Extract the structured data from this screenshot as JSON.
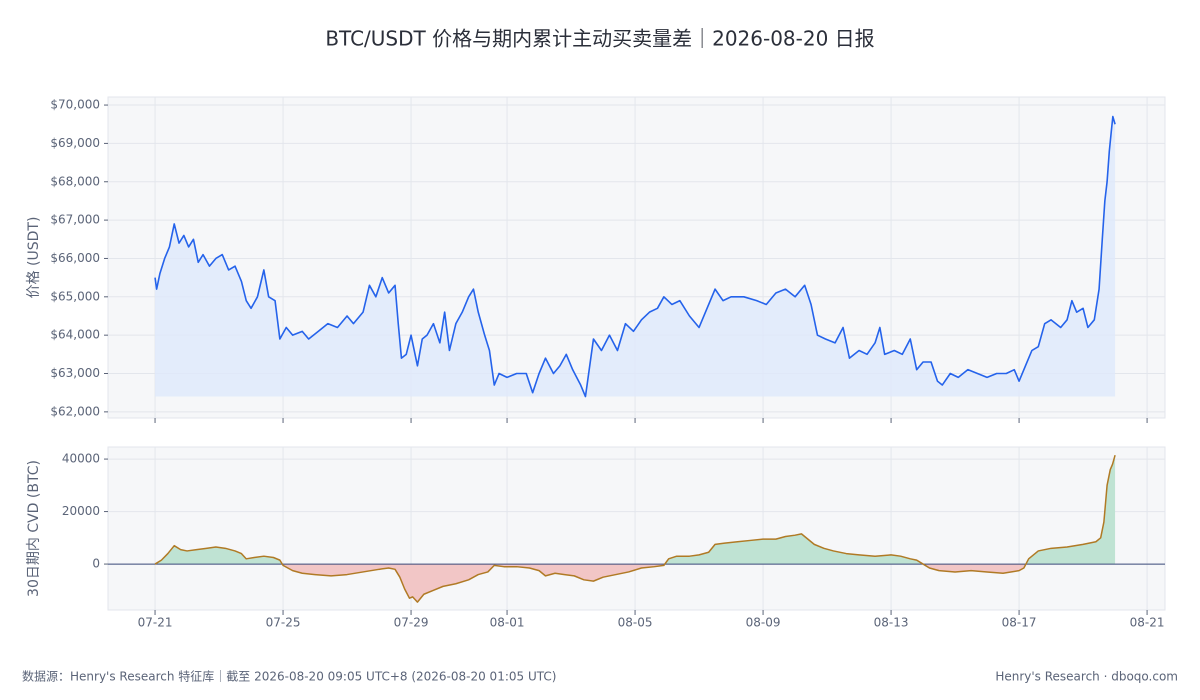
{
  "title": "BTC/USDT 价格与期内累计主动买卖量差｜2026-08-20 日报",
  "footer": {
    "left": "数据源：Henry's Research 特征库｜截至 2026-08-20 09:05 UTC+8 (2026-08-20 01:05 UTC)",
    "right": "Henry's Research · dboqo.com"
  },
  "chart_data": [
    {
      "type": "line",
      "y_label": "价格 (USDT)",
      "color": "#2563eb",
      "fill_color": "#dfe8fb",
      "grid": true,
      "xlim": [
        -1.47,
        31.56
      ],
      "xticks": [
        0,
        4,
        8,
        11,
        15,
        19,
        23,
        27,
        31
      ],
      "ylim": [
        61840,
        70210
      ],
      "yticks": [
        {
          "value": 62000,
          "label": "$62,000"
        },
        {
          "value": 63000,
          "label": "$63,000"
        },
        {
          "value": 64000,
          "label": "$64,000"
        },
        {
          "value": 65000,
          "label": "$65,000"
        },
        {
          "value": 66000,
          "label": "$66,000"
        },
        {
          "value": 67000,
          "label": "$67,000"
        },
        {
          "value": 68000,
          "label": "$68,000"
        },
        {
          "value": 69000,
          "label": "$69,000"
        },
        {
          "value": 70000,
          "label": "$70,000"
        }
      ],
      "x": [
        0,
        0.05,
        0.15,
        0.3,
        0.45,
        0.6,
        0.75,
        0.9,
        1.05,
        1.2,
        1.35,
        1.5,
        1.7,
        1.9,
        2.1,
        2.3,
        2.5,
        2.7,
        2.85,
        3.0,
        3.2,
        3.4,
        3.55,
        3.75,
        3.9,
        4.1,
        4.3,
        4.6,
        4.8,
        5.1,
        5.4,
        5.7,
        6.0,
        6.2,
        6.5,
        6.7,
        6.9,
        7.1,
        7.3,
        7.5,
        7.6,
        7.7,
        7.85,
        8.0,
        8.2,
        8.35,
        8.5,
        8.7,
        8.9,
        9.05,
        9.2,
        9.4,
        9.6,
        9.8,
        9.95,
        10.1,
        10.3,
        10.45,
        10.6,
        10.75,
        11.0,
        11.3,
        11.6,
        11.8,
        12.0,
        12.2,
        12.45,
        12.65,
        12.85,
        13.05,
        13.3,
        13.45,
        13.7,
        13.95,
        14.2,
        14.45,
        14.7,
        14.95,
        15.2,
        15.45,
        15.7,
        15.9,
        16.15,
        16.4,
        16.7,
        17.0,
        17.25,
        17.5,
        17.75,
        18.0,
        18.4,
        18.8,
        19.1,
        19.4,
        19.7,
        20.0,
        20.3,
        20.5,
        20.7,
        20.95,
        21.25,
        21.5,
        21.7,
        22.0,
        22.25,
        22.5,
        22.65,
        22.8,
        23.1,
        23.35,
        23.6,
        23.8,
        24.0,
        24.25,
        24.45,
        24.6,
        24.85,
        25.1,
        25.4,
        25.7,
        26.0,
        26.3,
        26.6,
        26.85,
        27.0,
        27.2,
        27.4,
        27.6,
        27.8,
        28.0,
        28.3,
        28.5,
        28.65,
        28.8,
        29.0,
        29.15,
        29.35,
        29.5,
        29.6,
        29.68,
        29.75,
        29.82,
        29.88,
        29.93,
        30.0
      ],
      "values": [
        65500,
        65200,
        65600,
        66000,
        66300,
        66900,
        66400,
        66600,
        66300,
        66500,
        65900,
        66100,
        65800,
        66000,
        66100,
        65700,
        65800,
        65400,
        64900,
        64700,
        65000,
        65700,
        65000,
        64900,
        63900,
        64200,
        64000,
        64100,
        63900,
        64100,
        64300,
        64200,
        64500,
        64300,
        64600,
        65300,
        65000,
        65500,
        65100,
        65300,
        64300,
        63400,
        63500,
        64000,
        63200,
        63900,
        64000,
        64300,
        63800,
        64600,
        63600,
        64300,
        64600,
        65000,
        65200,
        64600,
        64000,
        63600,
        62700,
        63000,
        62900,
        63000,
        63000,
        62500,
        63000,
        63400,
        63000,
        63200,
        63500,
        63100,
        62700,
        62400,
        63900,
        63600,
        64000,
        63600,
        64300,
        64100,
        64400,
        64600,
        64700,
        65000,
        64800,
        64900,
        64500,
        64200,
        64700,
        65200,
        64900,
        65000,
        65000,
        64900,
        64800,
        65100,
        65200,
        65000,
        65300,
        64800,
        64000,
        63900,
        63800,
        64200,
        63400,
        63600,
        63500,
        63800,
        64200,
        63500,
        63600,
        63500,
        63900,
        63100,
        63300,
        63300,
        62800,
        62700,
        63000,
        62900,
        63100,
        63000,
        62900,
        63000,
        63000,
        63100,
        62800,
        63200,
        63600,
        63700,
        64300,
        64400,
        64200,
        64400,
        64900,
        64600,
        64700,
        64200,
        64400,
        65200,
        66500,
        67500,
        68000,
        68800,
        69300,
        69700,
        69500
      ]
    },
    {
      "type": "area",
      "y_label": "30日期内 CVD (BTC)",
      "color": "#b07a25",
      "positive_color": "#bfe3d3",
      "negative_color": "#f2c6c6",
      "zero_color": "#3b4a7a",
      "grid": true,
      "xlim": [
        -1.47,
        31.56
      ],
      "xticks": [
        {
          "value": 0,
          "label": "07-21"
        },
        {
          "value": 4,
          "label": "07-25"
        },
        {
          "value": 8,
          "label": "07-29"
        },
        {
          "value": 11,
          "label": "08-01"
        },
        {
          "value": 15,
          "label": "08-05"
        },
        {
          "value": 19,
          "label": "08-09"
        },
        {
          "value": 23,
          "label": "08-13"
        },
        {
          "value": 27,
          "label": "08-17"
        },
        {
          "value": 31,
          "label": "08-21"
        }
      ],
      "ylim": [
        -17500,
        44600
      ],
      "yticks": [
        0,
        20000,
        40000
      ],
      "x": [
        0,
        0.2,
        0.4,
        0.6,
        0.8,
        1.0,
        1.3,
        1.6,
        1.9,
        2.2,
        2.5,
        2.7,
        2.85,
        3.1,
        3.4,
        3.7,
        3.9,
        4.0,
        4.3,
        4.6,
        5.0,
        5.5,
        6.0,
        6.5,
        7.0,
        7.3,
        7.5,
        7.65,
        7.8,
        7.95,
        8.05,
        8.2,
        8.4,
        8.7,
        9.0,
        9.4,
        9.8,
        10.1,
        10.4,
        10.6,
        10.9,
        11.3,
        11.7,
        12.0,
        12.2,
        12.5,
        12.8,
        13.1,
        13.4,
        13.7,
        14.0,
        14.4,
        14.8,
        15.2,
        15.6,
        15.9,
        16.05,
        16.3,
        16.7,
        17.0,
        17.3,
        17.5,
        17.8,
        18.2,
        18.6,
        19.0,
        19.4,
        19.7,
        20.0,
        20.2,
        20.4,
        20.6,
        20.9,
        21.2,
        21.6,
        22.0,
        22.5,
        23.0,
        23.3,
        23.6,
        23.8,
        24.0,
        24.2,
        24.5,
        25.0,
        25.5,
        26.0,
        26.5,
        27.0,
        27.15,
        27.3,
        27.6,
        28.0,
        28.5,
        29.0,
        29.4,
        29.55,
        29.65,
        29.75,
        29.85,
        29.92,
        30.0
      ],
      "values": [
        0,
        1500,
        4000,
        7000,
        5500,
        5000,
        5500,
        6000,
        6500,
        6000,
        5000,
        4000,
        2000,
        2500,
        3000,
        2500,
        1500,
        -500,
        -2500,
        -3500,
        -4000,
        -4500,
        -4000,
        -3000,
        -2000,
        -1500,
        -2000,
        -5000,
        -9500,
        -13000,
        -12500,
        -14500,
        -11500,
        -10000,
        -8500,
        -7500,
        -6000,
        -4000,
        -3000,
        -500,
        -1000,
        -1000,
        -1500,
        -2500,
        -4500,
        -3500,
        -4000,
        -4500,
        -6000,
        -6500,
        -5000,
        -4000,
        -3000,
        -1500,
        -1000,
        -500,
        2000,
        3000,
        3000,
        3500,
        4500,
        7500,
        8000,
        8500,
        9000,
        9500,
        9500,
        10500,
        11000,
        11500,
        9500,
        7500,
        6000,
        5000,
        4000,
        3500,
        3000,
        3500,
        3000,
        2000,
        1500,
        0,
        -1500,
        -2500,
        -3000,
        -2500,
        -3000,
        -3500,
        -2500,
        -1500,
        2000,
        5000,
        6000,
        6500,
        7500,
        8500,
        10000,
        16000,
        30000,
        36000,
        38000,
        41500
      ]
    }
  ]
}
